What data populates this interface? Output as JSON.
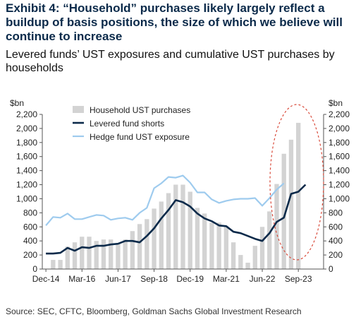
{
  "header": {
    "title": "Exhibit 4: “Household” purchases likely largely reflect a buildup of basis positions, the size of which we believe will continue to increase",
    "subtitle": "Levered funds’ UST exposures and cumulative UST purchases by households"
  },
  "footer": {
    "source": "Source: SEC, CFTC, Bloomberg, Goldman Sachs Global Investment Research"
  },
  "colors": {
    "bars": "#d3d3d3",
    "levered": "#0b2a4a",
    "hedge": "#9ecbee",
    "ellipse": "#d94a3a",
    "axis": "#555555"
  },
  "chart_data": {
    "type": "bar",
    "x_tick_labels": [
      "Dec-14",
      "Mar-16",
      "Jun-17",
      "Sep-18",
      "Dec-19",
      "Mar-21",
      "Jun-22",
      "Sep-23"
    ],
    "x_tick_quarters": [
      0,
      5,
      10,
      15,
      20,
      25,
      30,
      35
    ],
    "y_tick_labels": [
      "0",
      "200",
      "400",
      "600",
      "800",
      "1,000",
      "1,200",
      "1,400",
      "1,600",
      "1,800",
      "2,000",
      "2,200"
    ],
    "ylim": [
      0,
      2200
    ],
    "ylabel_left": "$bn",
    "ylabel_right": "$bn",
    "legend_position": "top-left",
    "series": [
      {
        "name": "Household UST purchases",
        "kind": "bar",
        "x_quarter": [
          1,
          2,
          3,
          4,
          5,
          6,
          7,
          8,
          9,
          10,
          11,
          12,
          13,
          14,
          15,
          16,
          17,
          18,
          19,
          20,
          21,
          22,
          23,
          24,
          25,
          26,
          27,
          28,
          29,
          30,
          31,
          32,
          33,
          34,
          35
        ],
        "values": [
          130,
          130,
          320,
          380,
          460,
          460,
          400,
          420,
          420,
          360,
          420,
          540,
          640,
          710,
          860,
          960,
          1080,
          1200,
          1200,
          1100,
          870,
          790,
          660,
          660,
          610,
          380,
          200,
          90,
          330,
          600,
          820,
          1210,
          1640,
          1840,
          2080
        ]
      },
      {
        "name": "Levered fund shorts",
        "kind": "line",
        "x_quarter": [
          0,
          1,
          2,
          3,
          4,
          5,
          6,
          7,
          8,
          9,
          10,
          11,
          12,
          13,
          14,
          15,
          16,
          17,
          18,
          19,
          20,
          21,
          22,
          23,
          24,
          25,
          26,
          27,
          28,
          29,
          30,
          31,
          32,
          33,
          34,
          35,
          36
        ],
        "values": [
          220,
          220,
          230,
          300,
          260,
          310,
          300,
          330,
          330,
          350,
          360,
          400,
          400,
          380,
          470,
          580,
          720,
          840,
          980,
          950,
          890,
          790,
          720,
          680,
          620,
          610,
          530,
          510,
          470,
          430,
          400,
          510,
          670,
          730,
          1070,
          1100,
          1200
        ]
      },
      {
        "name": "Hedge fund UST exposure",
        "kind": "line",
        "x_quarter": [
          0,
          1,
          2,
          3,
          4,
          5,
          6,
          7,
          8,
          9,
          10,
          11,
          12,
          13,
          14,
          15,
          16,
          17,
          18,
          19,
          20,
          21,
          22,
          23,
          24,
          25,
          26,
          27,
          28,
          29,
          30,
          31,
          32,
          33
        ],
        "values": [
          620,
          740,
          730,
          790,
          710,
          710,
          740,
          770,
          760,
          700,
          720,
          730,
          700,
          800,
          870,
          1150,
          1220,
          1310,
          1300,
          1330,
          1230,
          1090,
          1090,
          990,
          940,
          970,
          990,
          1000,
          1000,
          1010,
          900,
          1010,
          1130,
          1220
        ]
      }
    ],
    "annotation": "dashed ellipse highlighting recent quarters"
  }
}
